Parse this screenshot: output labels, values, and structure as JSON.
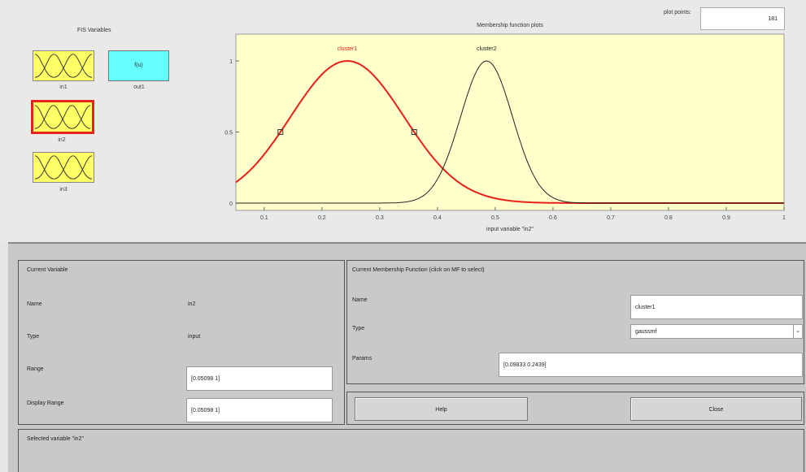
{
  "fis_variables": {
    "title": "FIS Variables",
    "inputs": [
      {
        "label": "in1"
      },
      {
        "label": "in2"
      },
      {
        "label": "in3"
      }
    ],
    "output": {
      "label": "out1",
      "box_text": "f(u)"
    },
    "selected": "in2"
  },
  "plot": {
    "title": "Membership function plots",
    "plot_points_label": "plot points:",
    "plot_points_value": "181",
    "xlabel": "input variable \"in2\"",
    "x_ticks": [
      "0.1",
      "0.2",
      "0.3",
      "0.4",
      "0.5",
      "0.6",
      "0.7",
      "0.8",
      "0.9",
      "1"
    ],
    "y_ticks": [
      "0",
      "0.5",
      "1"
    ],
    "mf_labels": {
      "cluster1": "cluster1",
      "cluster2": "cluster2"
    },
    "colors": {
      "selected": "#e8201a",
      "other": "#222222",
      "background": "#ffffcc"
    }
  },
  "chart_data": {
    "type": "line",
    "title": "Membership function plots",
    "xlabel": "input variable \"in2\"",
    "xlim": [
      0.05098,
      1
    ],
    "ylim": [
      0,
      1
    ],
    "series": [
      {
        "name": "cluster1",
        "type": "gaussmf",
        "sigma": 0.09833,
        "center": 0.2439,
        "selected": true
      },
      {
        "name": "cluster2",
        "type": "gaussmf",
        "sigma": 0.045,
        "center": 0.485,
        "selected": false
      }
    ]
  },
  "current_variable": {
    "title": "Current Variable",
    "name_label": "Name",
    "name_value": "in2",
    "type_label": "Type",
    "type_value": "input",
    "range_label": "Range",
    "range_value": "[0.05098 1]",
    "display_range_label": "Display Range",
    "display_range_value": "[0.05098 1]"
  },
  "current_mf": {
    "title": "Current Membership Function (click on MF to select)",
    "name_label": "Name",
    "name_value": "cluster1",
    "type_label": "Type",
    "type_value": "gaussmf",
    "params_label": "Params",
    "params_value": "[0.09833 0.2439]"
  },
  "buttons": {
    "help": "Help",
    "close": "Close"
  },
  "status": "Selected variable \"in2\""
}
